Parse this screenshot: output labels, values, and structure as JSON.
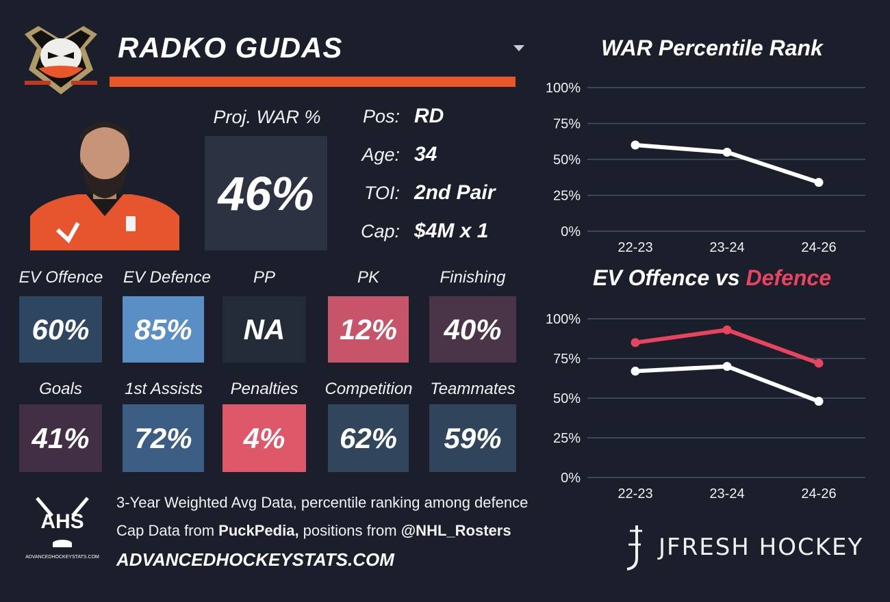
{
  "player": {
    "name": "RADKO GUDAS",
    "proj_war_label": "Proj. WAR %",
    "proj_war_value": "46%",
    "info": [
      {
        "label": "Pos:",
        "value": "RD"
      },
      {
        "label": "Age:",
        "value": "34"
      },
      {
        "label": "TOI:",
        "value": "2nd Pair"
      },
      {
        "label": "Cap:",
        "value": "$4M x 1"
      }
    ]
  },
  "stats_row1": [
    {
      "label": "EV Offence",
      "value": "60%",
      "color": "#2f4660"
    },
    {
      "label": "EV Defence",
      "value": "85%",
      "color": "#5a8fc5"
    },
    {
      "label": "PP",
      "value": "NA",
      "color": "#232b37"
    },
    {
      "label": "PK",
      "value": "12%",
      "color": "#c75468"
    },
    {
      "label": "Finishing",
      "value": "40%",
      "color": "#4a3448"
    }
  ],
  "stats_row2": [
    {
      "label": "Goals",
      "value": "41%",
      "color": "#432f44"
    },
    {
      "label": "1st Assists",
      "value": "72%",
      "color": "#3b5d83"
    },
    {
      "label": "Penalties",
      "value": "4%",
      "color": "#df5869"
    },
    {
      "label": "Competition",
      "value": "62%",
      "color": "#30465d"
    },
    {
      "label": "Teammates",
      "value": "59%",
      "color": "#30455c"
    }
  ],
  "footer": {
    "line1": "3-Year Weighted Avg Data, percentile ranking among defence",
    "line2_prefix": "Cap Data from ",
    "line2_source": "PuckPedia,",
    "line2_middle": " positions from ",
    "line2_handle": "@NHL_Rosters",
    "site": "ADVANCEDHOCKEYSTATS.COM",
    "ahs_logo_text": "AHS",
    "ahs_logo_sub": "ADVANCEDHOCKEYSTATS.COM",
    "brand": "JFRESH HOCKEY"
  },
  "colors": {
    "background": "#1a1f2b",
    "accent": "#e8562a",
    "defence_line": "#e8445f",
    "offence_line": "#ffffff",
    "grid": "#4a5264"
  },
  "chart_data": [
    {
      "type": "line",
      "title": "WAR Percentile Rank",
      "x": [
        "22-23",
        "23-24",
        "24-26"
      ],
      "series": [
        {
          "values": [
            60,
            55,
            34
          ],
          "color": "#ffffff"
        }
      ],
      "ylim": [
        0,
        100
      ],
      "yticks": [
        "100%",
        "75%",
        "50%",
        "25%",
        "0%"
      ],
      "grid": true
    },
    {
      "type": "line",
      "title_part1": "EV Offence vs ",
      "title_part2": "Defence",
      "x": [
        "22-23",
        "23-24",
        "24-26"
      ],
      "series": [
        {
          "values": [
            67,
            70,
            48
          ],
          "color": "#ffffff"
        },
        {
          "values": [
            85,
            93,
            72
          ],
          "color": "#e8445f"
        }
      ],
      "ylim": [
        0,
        100
      ],
      "yticks": [
        "100%",
        "75%",
        "50%",
        "25%",
        "0%"
      ],
      "grid": true
    }
  ]
}
